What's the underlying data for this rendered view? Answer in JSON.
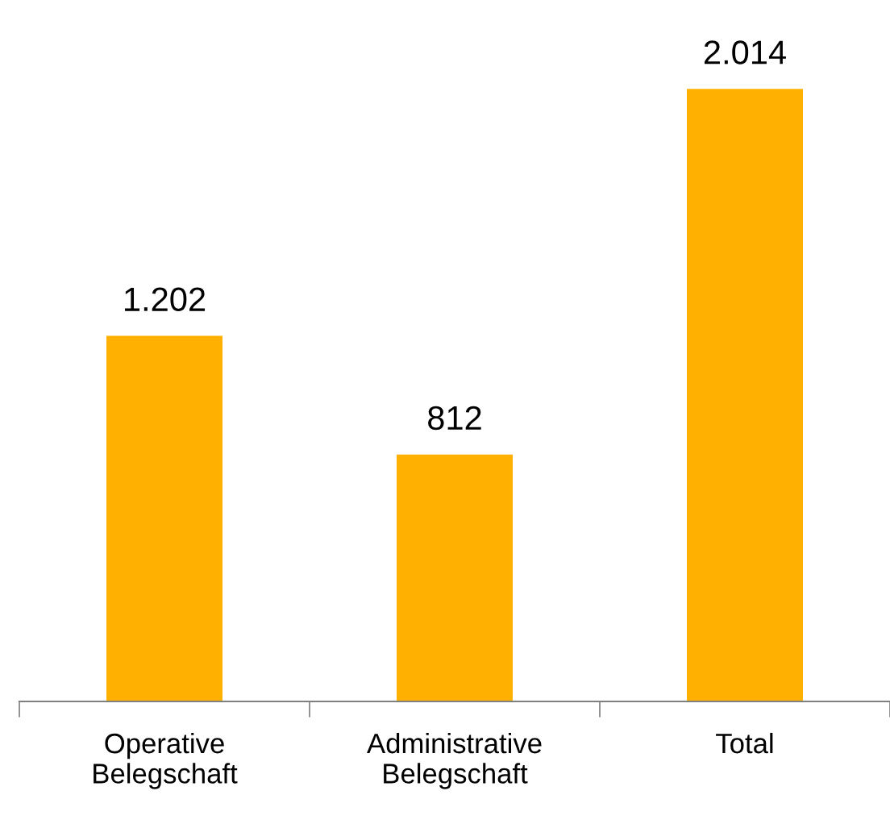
{
  "chart_data": {
    "type": "bar",
    "categories": [
      "Operative\nBelegschaft",
      "Administrative\nBelegschaft",
      "Total"
    ],
    "values": [
      1202,
      812,
      2014
    ],
    "value_labels": [
      "1.202",
      "812",
      "2.014"
    ],
    "color": "#ffb000",
    "grid": false,
    "legend": false
  }
}
